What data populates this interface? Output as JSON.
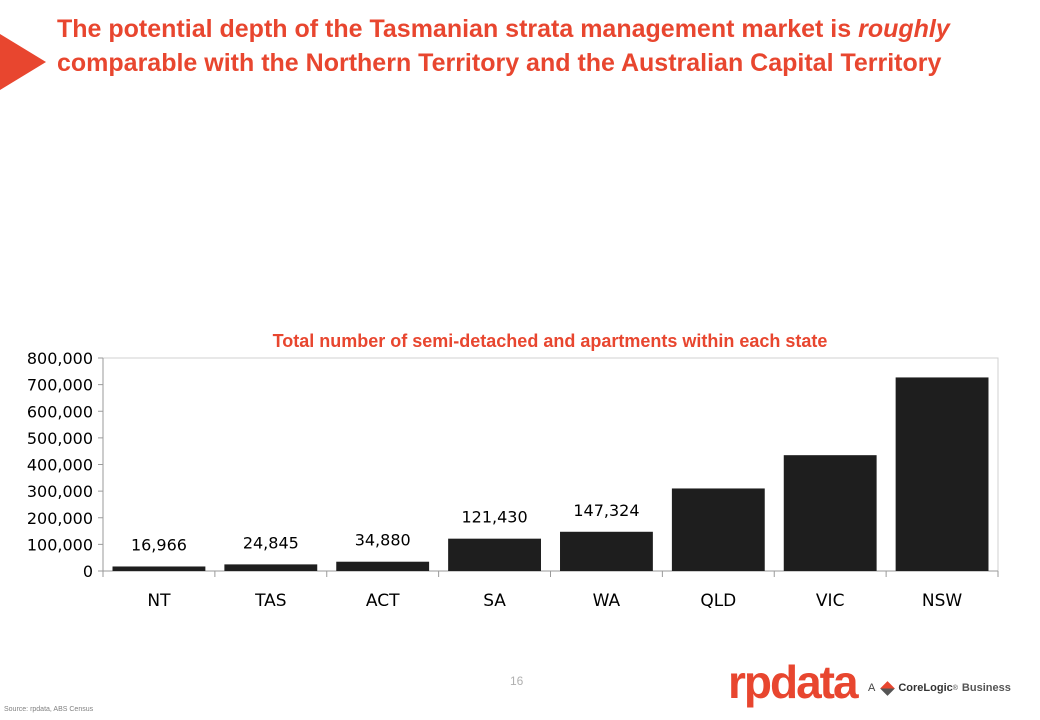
{
  "slide": {
    "title_part1": "The potential depth of the Tasmanian strata management market is ",
    "title_emphasis": "roughly",
    "title_part2": " comparable with the Northern Territory and the Australian Capital Territory",
    "page_number": "16",
    "source": "Source: rpdata, ABS Census"
  },
  "brand": {
    "logo_text": "rpdata",
    "tagline_prefix": "A",
    "tagline_brand": "CoreLogic",
    "tagline_mark": "®",
    "tagline_suffix": "Business",
    "accent_color": "#e8462f"
  },
  "chart_data": {
    "type": "bar",
    "title": "Total number of semi-detached and apartments within each state",
    "categories": [
      "NT",
      "TAS",
      "ACT",
      "SA",
      "WA",
      "QLD",
      "VIC",
      "NSW"
    ],
    "values": [
      16966,
      24845,
      34880,
      121430,
      147324,
      310000,
      435000,
      727000
    ],
    "data_labels": [
      "16,966",
      "24,845",
      "34,880",
      "121,430",
      "147,324",
      null,
      null,
      null
    ],
    "ylim": [
      0,
      800000
    ],
    "yticks": [
      0,
      100000,
      200000,
      300000,
      400000,
      500000,
      600000,
      700000,
      800000
    ],
    "ytick_labels": [
      "0",
      "100,000",
      "200,000",
      "300,000",
      "400,000",
      "500,000",
      "600,000",
      "700,000",
      "800,000"
    ],
    "xlabel": "",
    "ylabel": "",
    "grid": false,
    "legend": "none",
    "bar_color": "#1e1e1e"
  }
}
